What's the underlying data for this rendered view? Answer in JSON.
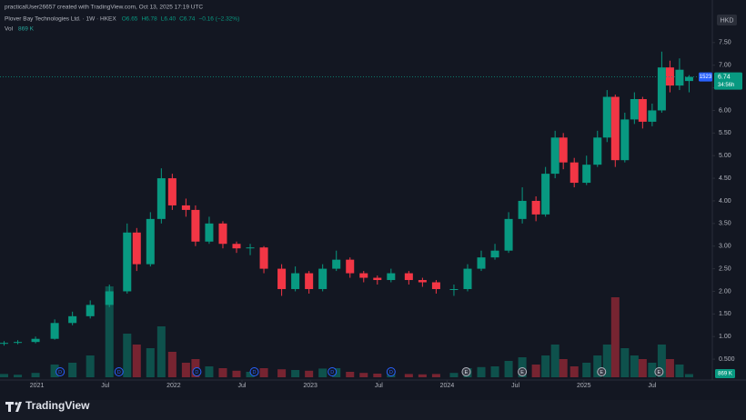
{
  "chart_data": {
    "type": "candlestick",
    "credit": "practicalUser26657 created with TradingView.com, Oct 13, 2025 17:19 UTC",
    "symbol": "Plover Bay Technologies Ltd. · 1W · HKEX",
    "ohlc_text": [
      "O6.65",
      "H6.78",
      "L6.40",
      "C6.74",
      "−0.16 (−2.32%)"
    ],
    "volume_title": "Vol",
    "volume_text": "869 K",
    "currency": "HKD",
    "ticker_badge": "1523",
    "price_badge": "6.74",
    "countdown": "34:56h",
    "logo": "TradingView",
    "x": [
      2020.76,
      2020.86,
      2020.99,
      2021.13,
      2021.26,
      2021.39,
      2021.53,
      2021.66,
      2021.73,
      2021.83,
      2021.91,
      2021.99,
      2022.09,
      2022.16,
      2022.26,
      2022.36,
      2022.46,
      2022.56,
      2022.66,
      2022.79,
      2022.89,
      2022.99,
      2023.09,
      2023.19,
      2023.29,
      2023.39,
      2023.49,
      2023.59,
      2023.72,
      2023.82,
      2023.92,
      2024.05,
      2024.15,
      2024.25,
      2024.35,
      2024.45,
      2024.55,
      2024.65,
      2024.72,
      2024.79,
      2024.85,
      2024.93,
      2025.02,
      2025.1,
      2025.17,
      2025.23,
      2025.3,
      2025.37,
      2025.43,
      2025.5,
      2025.57,
      2025.63,
      2025.7,
      2025.77
    ],
    "open": [
      0.84,
      0.86,
      0.88,
      0.95,
      1.3,
      1.45,
      1.7,
      2.0,
      3.3,
      2.6,
      3.6,
      4.5,
      3.9,
      3.8,
      3.1,
      3.5,
      3.05,
      2.95,
      2.97,
      2.5,
      2.05,
      2.4,
      2.05,
      2.5,
      2.7,
      2.4,
      2.3,
      2.25,
      2.4,
      2.25,
      2.2,
      2.05,
      2.05,
      2.5,
      2.75,
      2.9,
      3.6,
      4.0,
      3.7,
      4.6,
      5.4,
      4.85,
      4.4,
      4.8,
      5.4,
      6.3,
      4.9,
      5.8,
      6.25,
      5.75,
      6.0,
      6.95,
      6.55,
      6.65
    ],
    "high": [
      0.9,
      0.92,
      1.0,
      1.38,
      1.55,
      1.8,
      2.15,
      3.5,
      3.4,
      3.75,
      4.72,
      4.6,
      4.05,
      3.9,
      3.65,
      3.55,
      3.1,
      3.05,
      3.0,
      2.6,
      2.55,
      2.45,
      2.6,
      2.9,
      2.75,
      2.45,
      2.35,
      2.5,
      2.45,
      2.3,
      2.25,
      2.15,
      2.6,
      2.9,
      3.05,
      3.75,
      4.3,
      4.1,
      4.75,
      5.55,
      5.5,
      4.95,
      5.0,
      5.55,
      6.45,
      6.35,
      5.95,
      6.4,
      6.3,
      6.15,
      7.3,
      7.1,
      7.15,
      6.78
    ],
    "low": [
      0.8,
      0.83,
      0.85,
      0.93,
      1.25,
      1.4,
      1.65,
      1.95,
      2.45,
      2.55,
      3.5,
      3.8,
      3.65,
      3.0,
      3.05,
      2.95,
      2.85,
      2.8,
      2.4,
      1.9,
      2.0,
      1.95,
      2.0,
      2.45,
      2.3,
      2.2,
      2.15,
      2.2,
      2.15,
      2.1,
      1.95,
      1.9,
      2.0,
      2.45,
      2.7,
      2.85,
      3.5,
      3.55,
      3.65,
      4.5,
      4.7,
      4.3,
      4.35,
      4.75,
      5.3,
      4.75,
      4.85,
      5.7,
      5.6,
      5.65,
      5.95,
      6.4,
      6.45,
      6.4
    ],
    "close": [
      0.86,
      0.88,
      0.95,
      1.3,
      1.45,
      1.7,
      2.0,
      3.3,
      2.6,
      3.6,
      4.5,
      3.9,
      3.8,
      3.1,
      3.5,
      3.05,
      2.95,
      2.97,
      2.5,
      2.05,
      2.4,
      2.05,
      2.5,
      2.7,
      2.4,
      2.3,
      2.25,
      2.4,
      2.25,
      2.2,
      2.05,
      2.05,
      2.5,
      2.75,
      2.9,
      3.6,
      4.0,
      3.7,
      4.6,
      5.4,
      4.85,
      4.4,
      4.8,
      5.4,
      6.3,
      4.9,
      5.8,
      6.25,
      5.75,
      6.0,
      6.95,
      6.55,
      6.9,
      6.74
    ],
    "volume": [
      900,
      700,
      1200,
      3500,
      4000,
      6000,
      25000,
      12000,
      9000,
      8000,
      14000,
      7000,
      4000,
      5000,
      3000,
      2500,
      1800,
      1500,
      2500,
      2200,
      2000,
      1800,
      2400,
      2500,
      1500,
      1200,
      1000,
      1200,
      900,
      800,
      900,
      1200,
      2500,
      2800,
      3000,
      4500,
      5500,
      3500,
      6000,
      9000,
      5000,
      3000,
      4000,
      6000,
      9000,
      22000,
      8000,
      6000,
      5000,
      4000,
      9000,
      5000,
      3500,
      869
    ],
    "up_color": "#089981",
    "down_color": "#f23645",
    "events": [
      {
        "x": 2021.17,
        "label": "D"
      },
      {
        "x": 2021.6,
        "label": "D"
      },
      {
        "x": 2022.17,
        "label": "D"
      },
      {
        "x": 2022.59,
        "label": "D"
      },
      {
        "x": 2023.16,
        "label": "D"
      },
      {
        "x": 2023.59,
        "label": "D"
      },
      {
        "x": 2024.14,
        "label": "E"
      },
      {
        "x": 2024.55,
        "label": "E"
      },
      {
        "x": 2025.13,
        "label": "E"
      },
      {
        "x": 2025.55,
        "label": "E"
      }
    ],
    "xlim": [
      2020.73,
      2025.94
    ],
    "xticks": [
      2021,
      {
        "value": 2021.5,
        "label": "Jul"
      },
      2022,
      {
        "value": 2022.5,
        "label": "Jul"
      },
      2023,
      {
        "value": 2023.5,
        "label": "Jul"
      },
      2024,
      {
        "value": 2024.5,
        "label": "Jul"
      },
      2025,
      {
        "value": 2025.5,
        "label": "Jul"
      }
    ],
    "ylim": [
      0.1,
      8.2
    ],
    "yticks": [
      {
        "value": 0.5,
        "label": "0.500"
      },
      {
        "value": 1,
        "label": "1.00"
      },
      {
        "value": 1.5,
        "label": "1.50"
      },
      {
        "value": 2,
        "label": "2.00"
      },
      {
        "value": 2.5,
        "label": "2.50"
      },
      {
        "value": 3,
        "label": "3.00"
      },
      {
        "value": 3.5,
        "label": "3.50"
      },
      {
        "value": 4,
        "label": "4.00"
      },
      {
        "value": 4.5,
        "label": "4.50"
      },
      {
        "value": 5,
        "label": "5.00"
      },
      {
        "value": 5.5,
        "label": "5.50"
      },
      {
        "value": 6,
        "label": "6.00"
      },
      {
        "value": 6.5,
        "label": "6.50"
      },
      {
        "value": 7,
        "label": "7.00"
      },
      {
        "value": 7.5,
        "label": "7.50"
      }
    ],
    "vlim": [
      0,
      30000
    ],
    "grid": false
  }
}
